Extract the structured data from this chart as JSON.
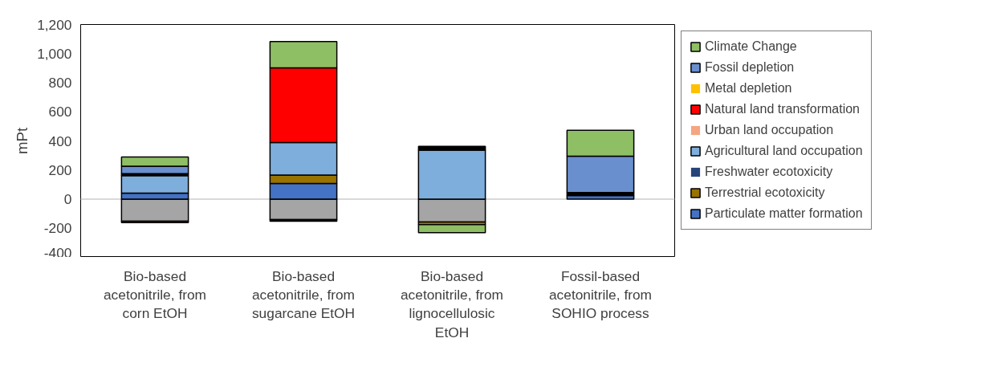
{
  "chart_data": {
    "type": "bar",
    "stacked": true,
    "ylabel": "mPt",
    "categories": [
      "Bio-based acetonitrile, from corn EtOH",
      "Bio-based acetonitrile, from sugarcane EtOH",
      "Bio-based acetonitrile, from lignocellulosic EtOH",
      "Fossil-based acetonitrile, from SOHIO process"
    ],
    "series": [
      {
        "color": "#a5a5a5",
        "values": [
          -152,
          -140,
          -157,
          null
        ]
      },
      {
        "name": "Particulate matter formation",
        "color": "#4472c4",
        "values": [
          41,
          107,
          null,
          25
        ]
      },
      {
        "name": "Terrestrial ecotoxicity",
        "color": "#997300",
        "values": [
          -10,
          58,
          -18,
          null
        ]
      },
      {
        "name": "Freshwater ecotoxicity",
        "color": "#264478",
        "values": [
          null,
          null,
          null,
          null
        ]
      },
      {
        "name": "Agricultural land occupation",
        "color": "#7eaedc",
        "values": [
          121,
          224,
          337,
          null
        ]
      },
      {
        "name": "Urban land occupation",
        "color": "#f4a582",
        "values": [
          null,
          null,
          null,
          null
        ]
      },
      {
        "name": "Natural land transformation",
        "color": "#ff0000",
        "values": [
          null,
          513,
          null,
          null
        ]
      },
      {
        "name": "Metal depletion",
        "color": "#ffc000",
        "values": [
          null,
          null,
          null,
          null
        ]
      },
      {
        "color": "#000000",
        "values": [
          13,
          -12,
          26,
          20
        ]
      },
      {
        "name": "Fossil depletion",
        "color": "#6a8fcf",
        "values": [
          51,
          null,
          null,
          250
        ]
      },
      {
        "name": "Climate Change",
        "color": "#8fbf64",
        "values": [
          63,
          181,
          -55,
          178
        ]
      }
    ],
    "ylim": [
      -400,
      1200
    ],
    "yticks": [
      {
        "value": -400,
        "label": "-400"
      },
      {
        "value": -200,
        "label": "-200"
      },
      0,
      200,
      400,
      600,
      800,
      {
        "value": 1000,
        "label": "1,000"
      },
      {
        "value": 1200,
        "label": "1,200"
      }
    ],
    "ref_lines": [
      {
        "axis": "y",
        "value": 0,
        "color": "#d9d9d9"
      }
    ],
    "grid": false,
    "legend": "right"
  }
}
